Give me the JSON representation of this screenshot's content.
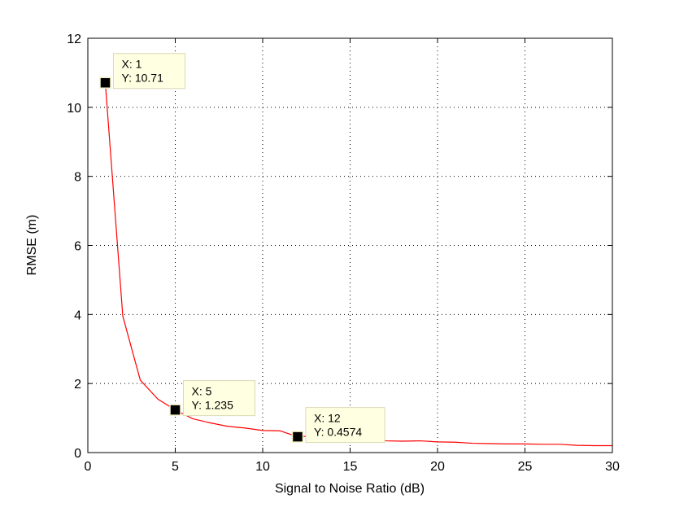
{
  "chart_data": {
    "type": "line",
    "title": "",
    "xlabel": "Signal to Noise Ratio (dB)",
    "ylabel": "RMSE (m)",
    "xlim": [
      0,
      30
    ],
    "ylim": [
      0,
      12
    ],
    "xticks": [
      0,
      5,
      10,
      15,
      20,
      25,
      30
    ],
    "yticks": [
      0,
      2,
      4,
      6,
      8,
      10,
      12
    ],
    "grid": true,
    "grid_style": "dotted",
    "series": [
      {
        "color": "#ff0000",
        "x": [
          1,
          2,
          3,
          4,
          5,
          6,
          7,
          8,
          9,
          10,
          11,
          12,
          13,
          14,
          15,
          16,
          17,
          18,
          19,
          20,
          21,
          22,
          23,
          24,
          25,
          26,
          27,
          28,
          29,
          30
        ],
        "y": [
          10.71,
          3.95,
          2.1,
          1.55,
          1.235,
          0.98,
          0.86,
          0.76,
          0.71,
          0.64,
          0.63,
          0.4574,
          0.48,
          0.42,
          0.35,
          0.39,
          0.34,
          0.33,
          0.34,
          0.31,
          0.3,
          0.27,
          0.26,
          0.25,
          0.25,
          0.24,
          0.24,
          0.21,
          0.2,
          0.2
        ]
      }
    ],
    "datatips": [
      {
        "x": 1,
        "y": 10.71,
        "x_label": "X: 1",
        "y_label": "Y: 10.71"
      },
      {
        "x": 5,
        "y": 1.235,
        "x_label": "X: 5",
        "y_label": "Y: 1.235"
      },
      {
        "x": 12,
        "y": 0.4574,
        "x_label": "X: 12",
        "y_label": "Y: 0.4574"
      }
    ]
  }
}
